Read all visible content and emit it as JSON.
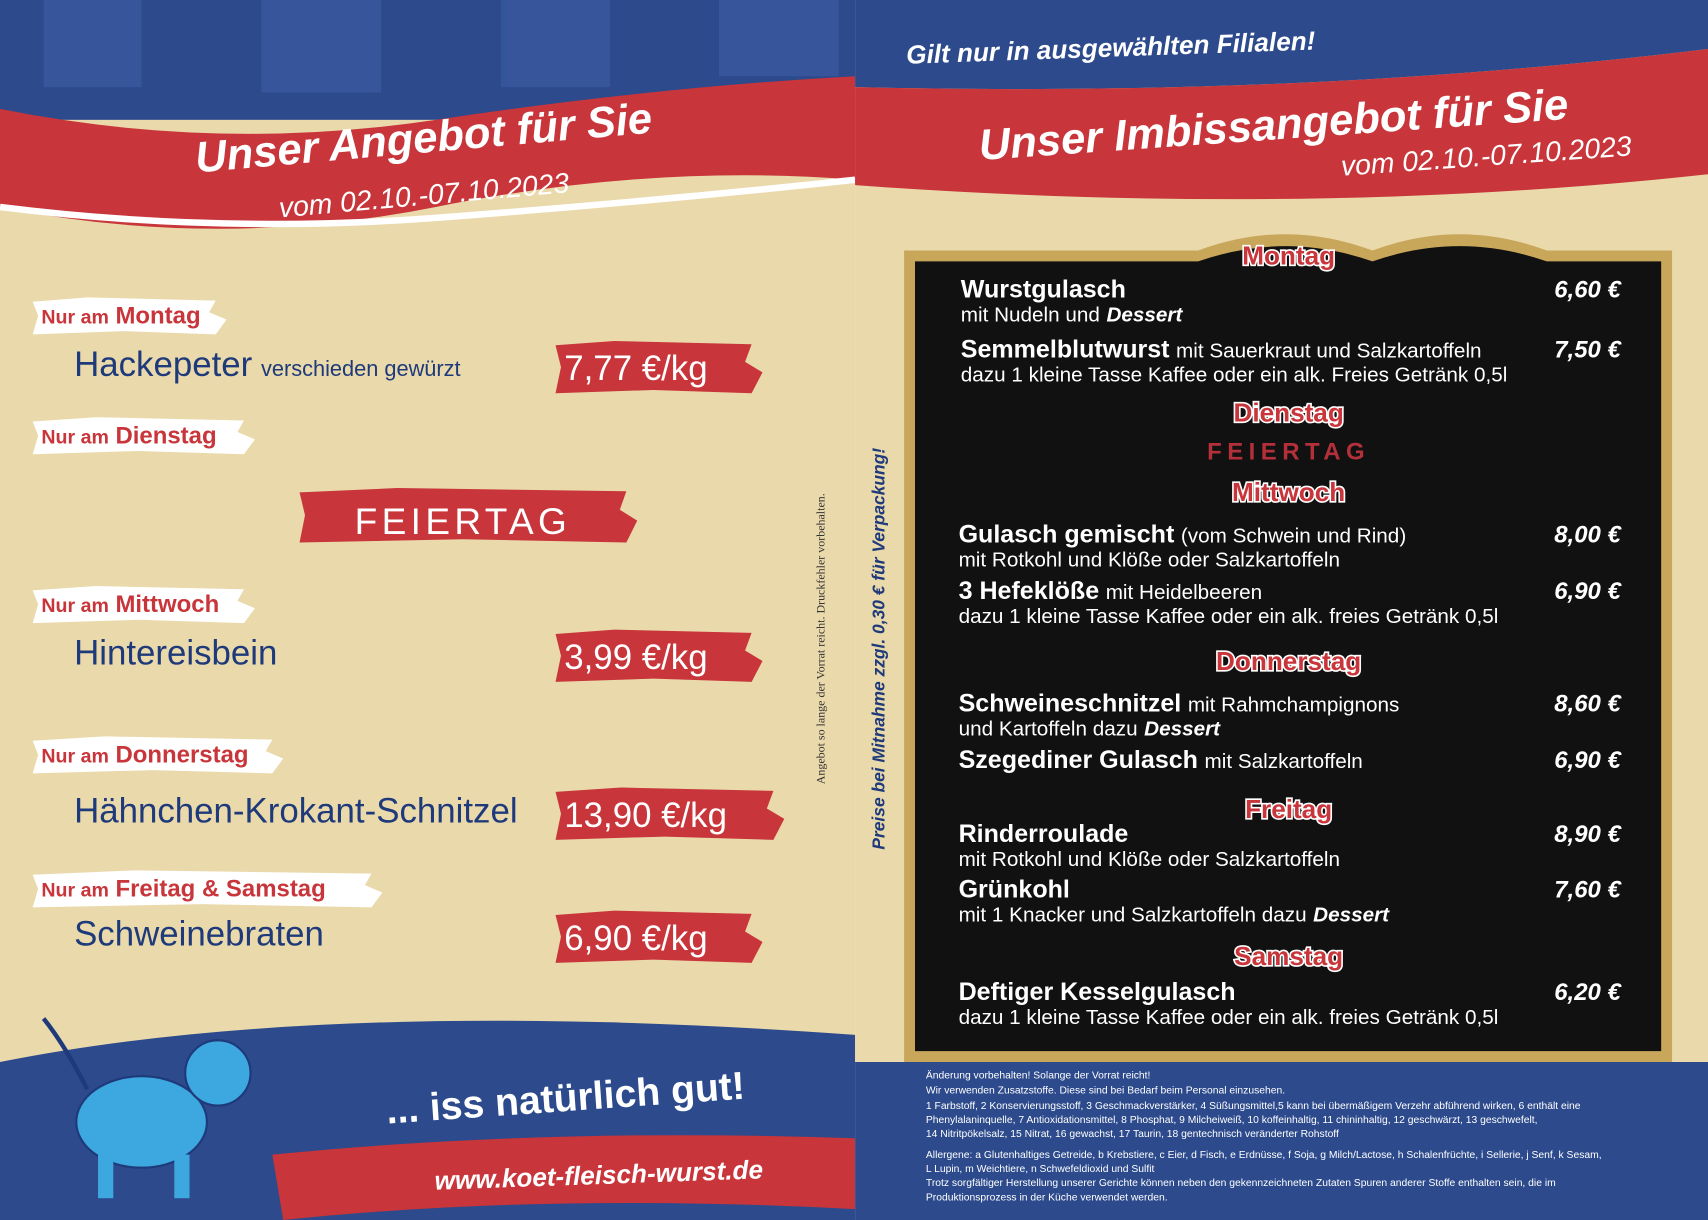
{
  "left": {
    "title": "Unser Angebot für Sie",
    "date": "vom 02.10.-07.10.2023",
    "offers": [
      {
        "prefix": "Nur am",
        "day": "Montag",
        "name": "Hackepeter",
        "note": "verschieden gewürzt",
        "price": "7,77 €/kg"
      },
      {
        "prefix": "Nur am",
        "day": "Dienstag",
        "special": "FEIERTAG"
      },
      {
        "prefix": "Nur am",
        "day": "Mittwoch",
        "name": "Hintereisbein",
        "price": "3,99 €/kg"
      },
      {
        "prefix": "Nur am",
        "day": "Donnerstag",
        "name": "Hähnchen-Krokant-Schnitzel",
        "price": "13,90 €/kg"
      },
      {
        "prefix": "Nur am",
        "day": "Freitag & Samstag",
        "name": "Schweinebraten",
        "price": "6,90 €/kg"
      }
    ],
    "side_note": "Angebot so lange der Vorrat reicht. Druckfehler vorbehalten.",
    "side_note_2": "Preise bei Mitnahme zzgl. 0,30 € für Verpackung!",
    "slogan": "... iss natürlich gut!",
    "url": "www.koet-fleisch-wurst.de"
  },
  "right": {
    "banner": "Gilt nur in ausgewählten Filialen!",
    "title": "Unser Imbissangebot für Sie",
    "date": "vom 02.10.-07.10.2023",
    "days": [
      {
        "day": "Montag",
        "items": [
          {
            "name": "Wurstgulasch",
            "line2": "mit Nudeln und",
            "emphasis": "Dessert",
            "price": "6,60 €"
          },
          {
            "name": "Semmelblutwurst",
            "inline": "mit Sauerkraut und Salzkartoffeln",
            "line2": "dazu 1 kleine Tasse Kaffee oder ein alk. Freies Getränk 0,5l",
            "price": "7,50 €"
          }
        ]
      },
      {
        "day": "Dienstag",
        "note": "FEIERTAG"
      },
      {
        "day": "Mittwoch",
        "items": [
          {
            "name": "Gulasch gemischt",
            "inline": "(vom Schwein und Rind)",
            "line2": "mit Rotkohl und Klöße oder Salzkartoffeln",
            "price": "8,00 €"
          },
          {
            "name": "3 Hefeklöße",
            "inline": "mit Heidelbeeren",
            "line2": "dazu 1 kleine Tasse Kaffee oder ein alk. freies Getränk 0,5l",
            "price": "6,90 €"
          }
        ]
      },
      {
        "day": "Donnerstag",
        "items": [
          {
            "name": "Schweineschnitzel",
            "inline": "mit Rahmchampignons",
            "line2": "und Kartoffeln dazu",
            "emphasis": "Dessert",
            "price": "8,60 €"
          },
          {
            "name": "Szegediner Gulasch",
            "inline": "mit Salzkartoffeln",
            "price": "6,90 €"
          }
        ]
      },
      {
        "day": "Freitag",
        "items": [
          {
            "name": "Rinderroulade",
            "line2": "mit Rotkohl und Klöße oder Salzkartoffeln",
            "price": "8,90 €"
          },
          {
            "name": "Grünkohl",
            "line2": "mit 1 Knacker und Salzkartoffeln dazu",
            "emphasis": "Dessert",
            "price": "7,60 €"
          }
        ]
      },
      {
        "day": "Samstag",
        "items": [
          {
            "name": "Deftiger Kesselgulasch",
            "line2": "dazu 1 kleine Tasse Kaffee oder ein alk. freies Getränk 0,5l",
            "price": "6,20 €"
          }
        ]
      }
    ],
    "footer": [
      "Änderung vorbehalten! Solange der Vorrat reicht!",
      "Wir verwenden Zusatzstoffe. Diese sind bei Bedarf beim Personal einzusehen.",
      "1 Farbstoff, 2 Konservierungsstoff, 3 Geschmackverstärker, 4 Süßungsmittel,5 kann bei übermäßigem Verzehr abführend wirken, 6 enthält eine",
      "Phenylalaninquelle, 7 Antioxidationsmittel, 8 Phosphat, 9 Milcheiweiß, 10 koffeinhaltig, 11 chininhaltig, 12 geschwärzt, 13 geschwefelt,",
      "14 Nitritpökelsalz, 15 Nitrat, 16 gewachst, 17 Taurin, 18 gentechnisch veränderter Rohstoff",
      "Allergene: a Glutenhaltiges Getreide, b Krebstiere, c Eier, d Fisch, e Erdnüsse, f Soja, g Milch/Lactose, h Schalenfrüchte, i Sellerie, j Senf, k Sesam,",
      "L Lupin, m Weichtiere, n Schwefeldioxid und Sulfit",
      "Trotz sorgfältiger Herstellung unserer Gerichte können neben den gekennzeichneten Zutaten Spuren anderer Stoffe enthalten sein, die im",
      "Produktionsprozess in der Küche verwendet werden."
    ]
  }
}
